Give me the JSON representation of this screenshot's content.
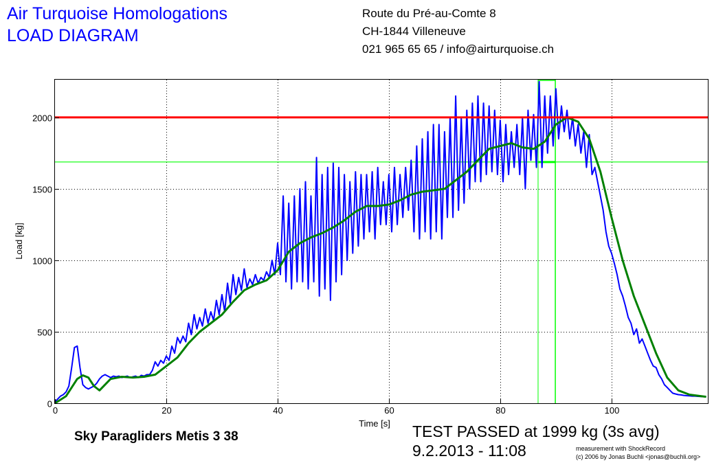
{
  "header": {
    "title_line1": "Air Turquoise Homologations",
    "title_line2": "LOAD DIAGRAM",
    "address_line1": "Route du Pré-au-Comte 8",
    "address_line2": "CH-1844 Villeneuve",
    "address_line3": "021 965 65 65 / info@airturquoise.ch"
  },
  "footer": {
    "glider": "Sky Paragliders Metis 3 38",
    "result": "TEST PASSED at 1999 kg (3s avg)",
    "datetime": "9.2.2013 - 11:08",
    "credit1": "measurement with ShockRecord",
    "credit2": "(c) 2006 by Jonas Buchli <jonas@buchli.org>"
  },
  "chart_data": {
    "type": "line",
    "xlabel": "Time [s]",
    "ylabel": "Load [kg]",
    "xlim": [
      0,
      117.3
    ],
    "ylim": [
      0,
      2264
    ],
    "xticks": [
      0,
      20,
      40,
      60,
      80,
      100
    ],
    "yticks": [
      0,
      500,
      1000,
      1500,
      2000
    ],
    "grid": true,
    "colors": {
      "raw": "#0000ff",
      "avg": "#008000",
      "limit": "#ff0000",
      "marker": "#00ff00"
    },
    "limit_line": 2000,
    "marker_hline": 1688,
    "marker_window": [
      86.8,
      89.9
    ],
    "series": [
      {
        "key": "raw",
        "points": [
          [
            0,
            10
          ],
          [
            0.5,
            30
          ],
          [
            1,
            50
          ],
          [
            1.5,
            60
          ],
          [
            2,
            80
          ],
          [
            2.5,
            120
          ],
          [
            3,
            250
          ],
          [
            3.5,
            390
          ],
          [
            4,
            400
          ],
          [
            4.5,
            250
          ],
          [
            5,
            130
          ],
          [
            5.5,
            110
          ],
          [
            6,
            100
          ],
          [
            6.5,
            110
          ],
          [
            7,
            120
          ],
          [
            7.5,
            140
          ],
          [
            8,
            170
          ],
          [
            8.5,
            190
          ],
          [
            9,
            200
          ],
          [
            9.5,
            190
          ],
          [
            10,
            180
          ],
          [
            10.5,
            190
          ],
          [
            11,
            185
          ],
          [
            11.5,
            190
          ],
          [
            12,
            180
          ],
          [
            12.5,
            185
          ],
          [
            13,
            190
          ],
          [
            13.5,
            180
          ],
          [
            14,
            185
          ],
          [
            14.5,
            190
          ],
          [
            15,
            180
          ],
          [
            15.5,
            195
          ],
          [
            16,
            190
          ],
          [
            16.5,
            200
          ],
          [
            17,
            200
          ],
          [
            17.5,
            230
          ],
          [
            18,
            290
          ],
          [
            18.5,
            260
          ],
          [
            19,
            300
          ],
          [
            19.5,
            280
          ],
          [
            20,
            330
          ],
          [
            20.5,
            300
          ],
          [
            21,
            400
          ],
          [
            21.5,
            350
          ],
          [
            22,
            460
          ],
          [
            22.5,
            420
          ],
          [
            23,
            470
          ],
          [
            23.5,
            430
          ],
          [
            24,
            560
          ],
          [
            24.5,
            480
          ],
          [
            25,
            620
          ],
          [
            25.5,
            520
          ],
          [
            26,
            600
          ],
          [
            26.5,
            540
          ],
          [
            27,
            660
          ],
          [
            27.5,
            560
          ],
          [
            28,
            640
          ],
          [
            28.5,
            580
          ],
          [
            29,
            720
          ],
          [
            29.5,
            620
          ],
          [
            30,
            760
          ],
          [
            30.5,
            640
          ],
          [
            31,
            840
          ],
          [
            31.5,
            700
          ],
          [
            32,
            900
          ],
          [
            32.5,
            760
          ],
          [
            33,
            880
          ],
          [
            33.5,
            790
          ],
          [
            34,
            940
          ],
          [
            34.5,
            810
          ],
          [
            35,
            870
          ],
          [
            35.5,
            830
          ],
          [
            36,
            900
          ],
          [
            36.5,
            840
          ],
          [
            37,
            880
          ],
          [
            37.5,
            860
          ],
          [
            38,
            920
          ],
          [
            38.5,
            880
          ],
          [
            39,
            1000
          ],
          [
            39.5,
            900
          ],
          [
            40,
            1120
          ],
          [
            40.5,
            900
          ],
          [
            41,
            1450
          ],
          [
            41.5,
            850
          ],
          [
            42,
            1400
          ],
          [
            42.5,
            800
          ],
          [
            43,
            1450
          ],
          [
            43.5,
            850
          ],
          [
            44,
            1500
          ],
          [
            44.5,
            850
          ],
          [
            45,
            1550
          ],
          [
            45.5,
            800
          ],
          [
            46,
            1450
          ],
          [
            46.5,
            850
          ],
          [
            47,
            1720
          ],
          [
            47.5,
            750
          ],
          [
            48,
            1600
          ],
          [
            48.5,
            800
          ],
          [
            49,
            1650
          ],
          [
            49.5,
            720
          ],
          [
            50,
            1680
          ],
          [
            50.5,
            850
          ],
          [
            51,
            1650
          ],
          [
            51.5,
            900
          ],
          [
            52,
            1600
          ],
          [
            52.5,
            1000
          ],
          [
            53,
            1550
          ],
          [
            53.5,
            1050
          ],
          [
            54,
            1620
          ],
          [
            54.5,
            1100
          ],
          [
            55,
            1600
          ],
          [
            55.5,
            1150
          ],
          [
            56,
            1600
          ],
          [
            56.5,
            1200
          ],
          [
            57,
            1620
          ],
          [
            57.5,
            1150
          ],
          [
            58,
            1650
          ],
          [
            58.5,
            1250
          ],
          [
            59,
            1550
          ],
          [
            59.5,
            1250
          ],
          [
            60,
            1600
          ],
          [
            60.5,
            1200
          ],
          [
            61,
            1650
          ],
          [
            61.5,
            1250
          ],
          [
            62,
            1600
          ],
          [
            62.5,
            1300
          ],
          [
            63,
            1650
          ],
          [
            63.5,
            1350
          ],
          [
            64,
            1700
          ],
          [
            64.5,
            1200
          ],
          [
            65,
            1800
          ],
          [
            65.5,
            1150
          ],
          [
            66,
            1850
          ],
          [
            66.5,
            1200
          ],
          [
            67,
            1900
          ],
          [
            67.5,
            1150
          ],
          [
            68,
            1950
          ],
          [
            68.5,
            1200
          ],
          [
            69,
            1950
          ],
          [
            69.5,
            1150
          ],
          [
            70,
            1900
          ],
          [
            70.5,
            1300
          ],
          [
            71,
            2000
          ],
          [
            71.5,
            1300
          ],
          [
            72,
            2150
          ],
          [
            72.5,
            1350
          ],
          [
            73,
            2000
          ],
          [
            73.5,
            1400
          ],
          [
            74,
            2050
          ],
          [
            74.5,
            1500
          ],
          [
            75,
            2100
          ],
          [
            75.5,
            1550
          ],
          [
            76,
            2150
          ],
          [
            76.5,
            1550
          ],
          [
            77,
            2100
          ],
          [
            77.5,
            1600
          ],
          [
            78,
            2080
          ],
          [
            78.5,
            1620
          ],
          [
            79,
            2050
          ],
          [
            79.5,
            1600
          ],
          [
            80,
            1980
          ],
          [
            80.5,
            1550
          ],
          [
            81,
            1950
          ],
          [
            81.5,
            1600
          ],
          [
            82,
            1900
          ],
          [
            82.5,
            1650
          ],
          [
            83,
            1950
          ],
          [
            83.5,
            1600
          ],
          [
            84,
            2000
          ],
          [
            84.5,
            1500
          ],
          [
            85,
            2050
          ],
          [
            85.5,
            1700
          ],
          [
            86,
            2020
          ],
          [
            86.5,
            1650
          ],
          [
            87,
            2250
          ],
          [
            87.5,
            1650
          ],
          [
            88,
            2150
          ],
          [
            88.5,
            1750
          ],
          [
            89,
            2150
          ],
          [
            89.5,
            1800
          ],
          [
            90,
            2200
          ],
          [
            90.5,
            1850
          ],
          [
            91,
            2080
          ],
          [
            91.5,
            1900
          ],
          [
            92,
            2050
          ],
          [
            92.5,
            1850
          ],
          [
            93,
            2000
          ],
          [
            93.5,
            1800
          ],
          [
            94,
            1950
          ],
          [
            94.5,
            1750
          ],
          [
            95,
            1900
          ],
          [
            95.5,
            1650
          ],
          [
            96,
            1880
          ],
          [
            96.5,
            1600
          ],
          [
            97,
            1650
          ],
          [
            97.5,
            1550
          ],
          [
            98,
            1450
          ],
          [
            98.5,
            1350
          ],
          [
            99,
            1200
          ],
          [
            99.5,
            1100
          ],
          [
            100,
            1050
          ],
          [
            100.5,
            980
          ],
          [
            101,
            900
          ],
          [
            101.5,
            800
          ],
          [
            102,
            750
          ],
          [
            102.5,
            680
          ],
          [
            103,
            600
          ],
          [
            103.5,
            560
          ],
          [
            104,
            480
          ],
          [
            104.5,
            520
          ],
          [
            105,
            420
          ],
          [
            105.5,
            450
          ],
          [
            106,
            400
          ],
          [
            106.5,
            350
          ],
          [
            107,
            300
          ],
          [
            107.5,
            260
          ],
          [
            108,
            250
          ],
          [
            108.5,
            200
          ],
          [
            109,
            170
          ],
          [
            109.5,
            130
          ],
          [
            110,
            110
          ],
          [
            110.5,
            90
          ],
          [
            111,
            70
          ],
          [
            111.5,
            65
          ],
          [
            112,
            60
          ],
          [
            112.5,
            58
          ],
          [
            113,
            55
          ],
          [
            113.5,
            53
          ],
          [
            114,
            52
          ],
          [
            114.5,
            50
          ],
          [
            115,
            50
          ],
          [
            115.5,
            48
          ],
          [
            116,
            47
          ],
          [
            116.5,
            46
          ],
          [
            117,
            45
          ]
        ]
      },
      {
        "key": "avg",
        "points": [
          [
            0,
            0
          ],
          [
            2,
            50
          ],
          [
            4,
            170
          ],
          [
            5,
            195
          ],
          [
            6,
            180
          ],
          [
            7,
            120
          ],
          [
            8,
            90
          ],
          [
            10,
            170
          ],
          [
            12,
            185
          ],
          [
            14,
            180
          ],
          [
            16,
            185
          ],
          [
            18,
            200
          ],
          [
            20,
            260
          ],
          [
            22,
            320
          ],
          [
            24,
            420
          ],
          [
            26,
            500
          ],
          [
            28,
            560
          ],
          [
            30,
            620
          ],
          [
            32,
            710
          ],
          [
            34,
            790
          ],
          [
            36,
            830
          ],
          [
            38,
            860
          ],
          [
            40,
            930
          ],
          [
            42,
            1060
          ],
          [
            44,
            1120
          ],
          [
            46,
            1160
          ],
          [
            48,
            1190
          ],
          [
            50,
            1230
          ],
          [
            52,
            1280
          ],
          [
            54,
            1340
          ],
          [
            56,
            1380
          ],
          [
            58,
            1380
          ],
          [
            60,
            1390
          ],
          [
            62,
            1420
          ],
          [
            64,
            1460
          ],
          [
            66,
            1480
          ],
          [
            68,
            1490
          ],
          [
            70,
            1500
          ],
          [
            72,
            1560
          ],
          [
            74,
            1620
          ],
          [
            76,
            1700
          ],
          [
            78,
            1780
          ],
          [
            80,
            1800
          ],
          [
            82,
            1820
          ],
          [
            84,
            1790
          ],
          [
            86,
            1780
          ],
          [
            88,
            1830
          ],
          [
            90,
            1950
          ],
          [
            92,
            2000
          ],
          [
            94,
            1970
          ],
          [
            96,
            1850
          ],
          [
            98,
            1620
          ],
          [
            100,
            1300
          ],
          [
            102,
            1000
          ],
          [
            104,
            750
          ],
          [
            106,
            550
          ],
          [
            108,
            350
          ],
          [
            110,
            180
          ],
          [
            112,
            90
          ],
          [
            114,
            60
          ],
          [
            116,
            50
          ],
          [
            117,
            45
          ]
        ]
      }
    ]
  }
}
